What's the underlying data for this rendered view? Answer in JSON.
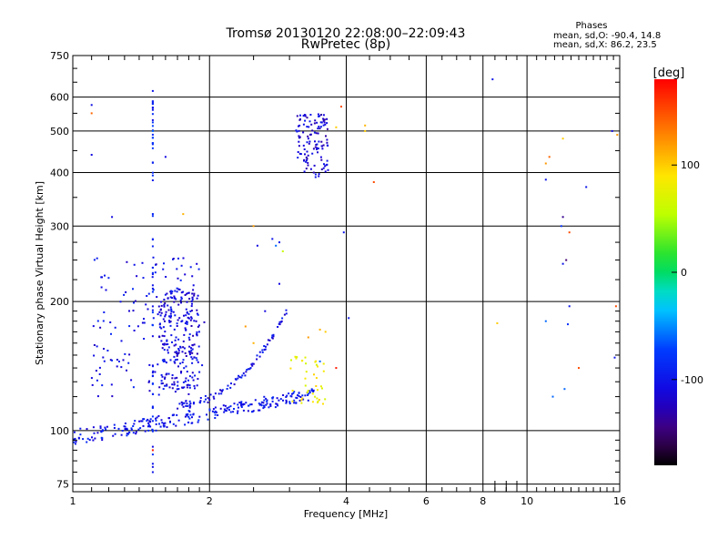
{
  "chart_data": {
    "type": "scatter",
    "title": "Tromsø 20130120 22:08:00–22:09:43",
    "subtitle": "RwPretec (8p)",
    "xlabel": "Frequency [MHz]",
    "ylabel": "Stationary phase Virtual Height [km]",
    "xscale": "log",
    "yscale": "log",
    "xlim": [
      1,
      16
    ],
    "ylim": [
      72,
      750
    ],
    "xticks": [
      {
        "value": 1,
        "label": "1"
      },
      {
        "value": 2,
        "label": "2"
      },
      {
        "value": 4,
        "label": "4"
      },
      {
        "value": 6,
        "label": "6"
      },
      {
        "value": 8,
        "label": "8"
      },
      {
        "value": 10,
        "label": "10"
      },
      {
        "value": 16,
        "label": "16"
      }
    ],
    "yticks": [
      {
        "value": 75,
        "label": "75"
      },
      {
        "value": 100,
        "label": "100"
      },
      {
        "value": 200,
        "label": "200"
      },
      {
        "value": 300,
        "label": "300"
      },
      {
        "value": 400,
        "label": "400"
      },
      {
        "value": 500,
        "label": "500"
      },
      {
        "value": 600,
        "label": "600"
      },
      {
        "value": 750,
        "label": "750"
      }
    ],
    "grid": true,
    "legend": {
      "title": "Phases",
      "line1": "mean, sd,O: -90.4, 14.8",
      "line2": "mean, sd,X:  86.2, 23.5"
    },
    "colorbar": {
      "label": "[deg]",
      "range": [
        -180,
        180
      ],
      "ticks": [
        {
          "value": 100,
          "label": "100"
        },
        {
          "value": 0,
          "label": "0"
        },
        {
          "value": -100,
          "label": "-100"
        }
      ]
    },
    "trace_groups": [
      {
        "description": "main O trace",
        "f_range": [
          1.0,
          3.4
        ],
        "h_range": [
          97,
          122
        ],
        "phase_mean": -100,
        "count": 260
      },
      {
        "description": "rising trace",
        "f_range": [
          1.7,
          3.0
        ],
        "h_range": [
          115,
          195
        ],
        "phase_mean": -105,
        "count": 90
      },
      {
        "description": "F cusp",
        "f_range": [
          1.55,
          1.9
        ],
        "h_range": [
          125,
          215
        ],
        "phase_mean": -110,
        "count": 230
      },
      {
        "description": "E branch",
        "f_range": [
          1.1,
          1.95
        ],
        "h_range": [
          120,
          255
        ],
        "phase_mean": -105,
        "count": 150
      },
      {
        "description": "X trace",
        "f_range": [
          3.0,
          3.6
        ],
        "h_range": [
          115,
          150
        ],
        "phase_mean": 80,
        "count": 40
      },
      {
        "description": "F2 cluster",
        "f_range": [
          3.1,
          3.65
        ],
        "h_range": [
          390,
          550
        ],
        "phase_mean": -115,
        "count": 120
      },
      {
        "description": "vertical streak",
        "f_range": [
          1.5,
          1.5
        ],
        "h_range": [
          80,
          620
        ],
        "phase_mean": -90,
        "count": 60
      }
    ],
    "points": [
      {
        "f": 1.5,
        "h": 620,
        "p": -100
      },
      {
        "f": 1.5,
        "h": 560,
        "p": -100
      },
      {
        "f": 1.5,
        "h": 500,
        "p": -60
      },
      {
        "f": 1.5,
        "h": 80,
        "p": -100
      },
      {
        "f": 1.5,
        "h": 90,
        "p": 170
      },
      {
        "f": 1.1,
        "h": 575,
        "p": -105
      },
      {
        "f": 1.1,
        "h": 550,
        "p": 140
      },
      {
        "f": 1.1,
        "h": 440,
        "p": -110
      },
      {
        "f": 1.22,
        "h": 315,
        "p": -110
      },
      {
        "f": 1.6,
        "h": 435,
        "p": -110
      },
      {
        "f": 1.75,
        "h": 320,
        "p": 110
      },
      {
        "f": 2.5,
        "h": 300,
        "p": 120
      },
      {
        "f": 2.55,
        "h": 270,
        "p": -110
      },
      {
        "f": 2.75,
        "h": 280,
        "p": -100
      },
      {
        "f": 2.85,
        "h": 275,
        "p": -100
      },
      {
        "f": 2.8,
        "h": 270,
        "p": -60
      },
      {
        "f": 2.9,
        "h": 262,
        "p": 60
      },
      {
        "f": 2.85,
        "h": 220,
        "p": -110
      },
      {
        "f": 2.65,
        "h": 190,
        "p": -110
      },
      {
        "f": 2.4,
        "h": 175,
        "p": 120
      },
      {
        "f": 2.5,
        "h": 160,
        "p": 110
      },
      {
        "f": 3.3,
        "h": 165,
        "p": 120
      },
      {
        "f": 3.5,
        "h": 172,
        "p": 110
      },
      {
        "f": 3.6,
        "h": 170,
        "p": 100
      },
      {
        "f": 3.8,
        "h": 140,
        "p": 170
      },
      {
        "f": 3.5,
        "h": 145,
        "p": -60
      },
      {
        "f": 3.9,
        "h": 570,
        "p": 150
      },
      {
        "f": 3.8,
        "h": 510,
        "p": 100
      },
      {
        "f": 3.95,
        "h": 290,
        "p": -100
      },
      {
        "f": 4.05,
        "h": 183,
        "p": -100
      },
      {
        "f": 4.4,
        "h": 515,
        "p": 110
      },
      {
        "f": 4.4,
        "h": 500,
        "p": 100
      },
      {
        "f": 4.6,
        "h": 380,
        "p": 150
      },
      {
        "f": 8.4,
        "h": 660,
        "p": -100
      },
      {
        "f": 8.6,
        "h": 178,
        "p": 100
      },
      {
        "f": 11.0,
        "h": 420,
        "p": 120
      },
      {
        "f": 11.2,
        "h": 435,
        "p": 140
      },
      {
        "f": 11.0,
        "h": 385,
        "p": -100
      },
      {
        "f": 11.0,
        "h": 180,
        "p": -60
      },
      {
        "f": 11.4,
        "h": 120,
        "p": -60
      },
      {
        "f": 12.0,
        "h": 480,
        "p": 100
      },
      {
        "f": 11.9,
        "h": 300,
        "p": -80
      },
      {
        "f": 12.0,
        "h": 315,
        "p": -140
      },
      {
        "f": 12.0,
        "h": 245,
        "p": -100
      },
      {
        "f": 12.4,
        "h": 290,
        "p": 150
      },
      {
        "f": 12.2,
        "h": 250,
        "p": -150
      },
      {
        "f": 12.4,
        "h": 195,
        "p": -100
      },
      {
        "f": 12.3,
        "h": 177,
        "p": -80
      },
      {
        "f": 12.1,
        "h": 125,
        "p": -60
      },
      {
        "f": 13.0,
        "h": 140,
        "p": 150
      },
      {
        "f": 13.5,
        "h": 370,
        "p": -100
      },
      {
        "f": 15.4,
        "h": 500,
        "p": -110
      },
      {
        "f": 15.7,
        "h": 195,
        "p": 150
      },
      {
        "f": 15.6,
        "h": 148,
        "p": -100
      },
      {
        "f": 15.8,
        "h": 490,
        "p": 120
      }
    ]
  }
}
